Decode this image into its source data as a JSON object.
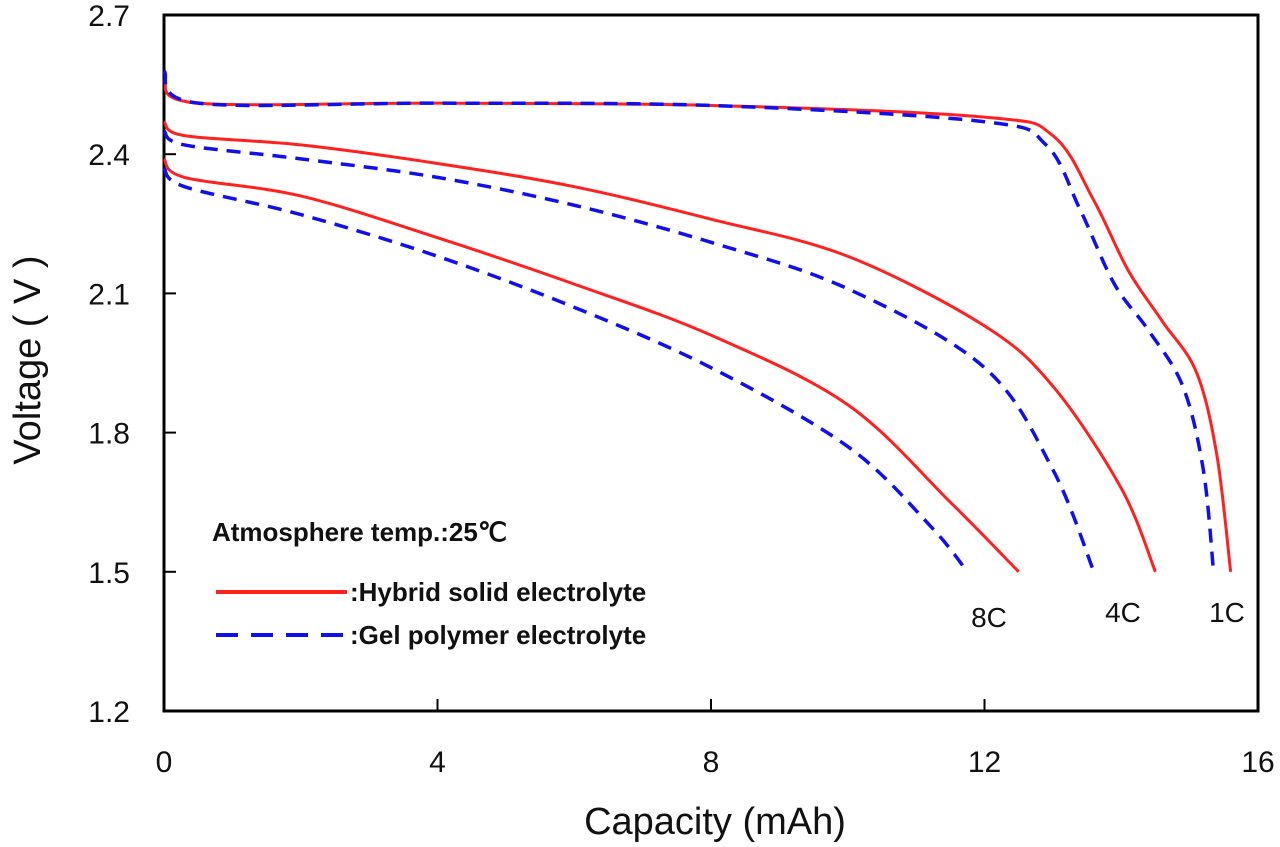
{
  "chart_data": {
    "type": "line",
    "title": "",
    "xlabel": "Capacity (mAh)",
    "ylabel": "Voltage ( V )",
    "xlim": [
      0,
      16
    ],
    "ylim": [
      1.2,
      2.7
    ],
    "xticks": [
      "0",
      "4",
      "8",
      "12",
      "16"
    ],
    "yticks": [
      "1.2",
      "1.5",
      "1.8",
      "2.1",
      "2.4",
      "2.7"
    ],
    "grid": false,
    "annotation": "Atmosphere temp.:25℃",
    "legend": [
      {
        "label": ":Hybrid solid electrolyte",
        "style": "solid",
        "color": "#ff2020"
      },
      {
        "label": ":Gel polymer electrolyte",
        "style": "dashed",
        "color": "#1010ee"
      }
    ],
    "rate_labels": [
      "8C",
      "4C",
      "1C"
    ],
    "series": [
      {
        "name": "Hybrid solid electrolyte 1C",
        "style": "solid",
        "color": "#ff2020",
        "x": [
          0,
          0.5,
          4,
          8,
          12,
          13,
          13.6,
          14.1,
          14.6,
          15.1,
          15.4,
          15.6
        ],
        "y": [
          2.56,
          2.51,
          2.51,
          2.505,
          2.48,
          2.44,
          2.3,
          2.15,
          2.04,
          1.93,
          1.75,
          1.5
        ]
      },
      {
        "name": "Gel polymer electrolyte 1C",
        "style": "dashed",
        "color": "#1010ee",
        "x": [
          0,
          0.5,
          4,
          8,
          12,
          12.9,
          13.4,
          13.9,
          14.4,
          14.9,
          15.2,
          15.35
        ],
        "y": [
          2.58,
          2.51,
          2.51,
          2.505,
          2.47,
          2.42,
          2.28,
          2.12,
          2.02,
          1.9,
          1.72,
          1.5
        ]
      },
      {
        "name": "Hybrid solid electrolyte 4C",
        "style": "solid",
        "color": "#ff2020",
        "x": [
          0,
          0.3,
          2,
          4,
          6,
          8,
          10,
          12,
          13,
          14,
          14.5
        ],
        "y": [
          2.47,
          2.44,
          2.42,
          2.38,
          2.33,
          2.26,
          2.18,
          2.03,
          1.9,
          1.68,
          1.5
        ]
      },
      {
        "name": "Gel polymer electrolyte 4C",
        "style": "dashed",
        "color": "#1010ee",
        "x": [
          0,
          0.3,
          2,
          4,
          6,
          8,
          10,
          12,
          13,
          13.6
        ],
        "y": [
          2.45,
          2.42,
          2.39,
          2.35,
          2.29,
          2.21,
          2.11,
          1.94,
          1.72,
          1.5
        ]
      },
      {
        "name": "Hybrid solid electrolyte 8C",
        "style": "solid",
        "color": "#ff2020",
        "x": [
          0,
          0.3,
          2,
          4,
          6,
          8,
          10,
          11.5,
          12.5
        ],
        "y": [
          2.39,
          2.35,
          2.31,
          2.22,
          2.12,
          2.01,
          1.86,
          1.65,
          1.5
        ]
      },
      {
        "name": "Gel polymer electrolyte 8C",
        "style": "dashed",
        "color": "#1010ee",
        "x": [
          0,
          0.3,
          2,
          4,
          6,
          8,
          10,
          11.2,
          11.75
        ],
        "y": [
          2.37,
          2.33,
          2.27,
          2.18,
          2.07,
          1.94,
          1.77,
          1.6,
          1.5
        ]
      }
    ]
  }
}
